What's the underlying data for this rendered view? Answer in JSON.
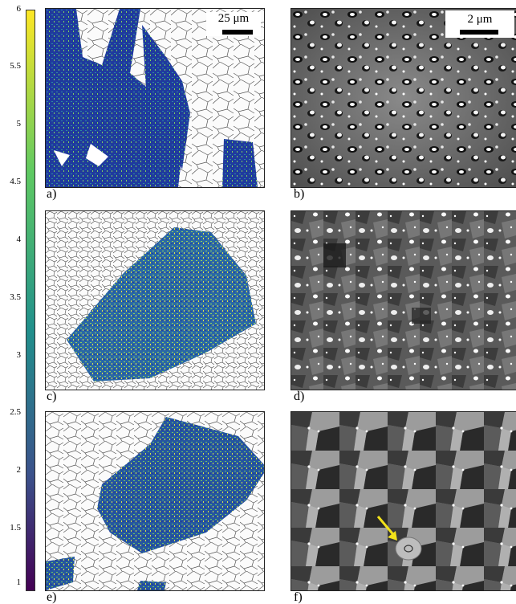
{
  "colorbar": {
    "ticks": [
      "6",
      "5.5",
      "5",
      "4.5",
      "4",
      "3.5",
      "3",
      "2.5",
      "2",
      "1.5",
      "1"
    ]
  },
  "panels": [
    {
      "id": "a",
      "label": "a)",
      "type": "ebsd-map",
      "scale_label": "25 μm"
    },
    {
      "id": "b",
      "label": "b)",
      "type": "sem-image",
      "scale_label": "2 μm"
    },
    {
      "id": "c",
      "label": "c)",
      "type": "ebsd-map"
    },
    {
      "id": "d",
      "label": "d)",
      "type": "sem-image"
    },
    {
      "id": "e",
      "label": "e)",
      "type": "ebsd-map"
    },
    {
      "id": "f",
      "label": "f)",
      "type": "sem-image",
      "annotation": "yellow arrow"
    }
  ],
  "colors": {
    "low": "#3a2d8f",
    "mid": "#21908c",
    "high": "#fde725",
    "arrow": "#f2e21a"
  }
}
